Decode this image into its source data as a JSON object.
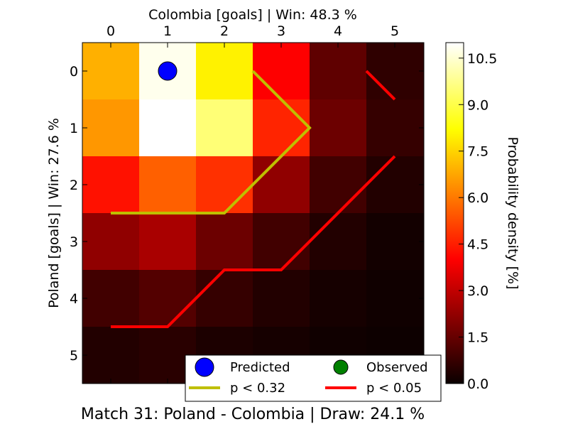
{
  "chart_data": {
    "type": "heatmap",
    "title": "Match 31: Poland - Colombia | Draw: 24.1 %",
    "xlabel": "Colombia [goals] | Win: 48.3 %",
    "ylabel": "Poland [goals] | Win: 27.6 %",
    "x_ticks": [
      "0",
      "1",
      "2",
      "3",
      "4",
      "5"
    ],
    "y_ticks": [
      "0",
      "1",
      "2",
      "3",
      "4",
      "5"
    ],
    "colorbar": {
      "label": "Probability density [%]",
      "ticks": [
        "0.0",
        "1.5",
        "3.0",
        "4.5",
        "6.0",
        "7.5",
        "9.0",
        "10.5"
      ],
      "range": [
        0,
        11
      ],
      "colormap": "hot"
    },
    "grid": false,
    "matrix": [
      [
        6.9,
        10.8,
        8.0,
        4.0,
        1.4,
        0.6
      ],
      [
        6.5,
        11.0,
        9.5,
        4.6,
        1.6,
        0.7
      ],
      [
        4.3,
        5.6,
        4.8,
        2.2,
        0.9,
        0.4
      ],
      [
        2.2,
        2.6,
        1.6,
        0.9,
        0.4,
        0.15
      ],
      [
        0.9,
        1.2,
        0.7,
        0.4,
        0.2,
        0.1
      ],
      [
        0.4,
        0.5,
        0.3,
        0.2,
        0.1,
        0.05
      ]
    ],
    "predicted": {
      "x": 1,
      "y": 0,
      "color": "#0000ff"
    },
    "contours": [
      {
        "name": "p < 0.32",
        "color": "#bfbf00",
        "segments": [
          [
            [
              0,
              2.5
            ],
            [
              2,
              2.5
            ],
            [
              3.5,
              1
            ],
            [
              2.5,
              0
            ]
          ]
        ]
      },
      {
        "name": "p < 0.05",
        "color": "#ff0000",
        "segments": [
          [
            [
              0,
              4.5
            ],
            [
              1,
              4.5
            ],
            [
              2,
              3.5
            ],
            [
              3,
              3.5
            ],
            [
              5,
              1.5
            ]
          ],
          [
            [
              4.5,
              0
            ],
            [
              5,
              0.5
            ]
          ]
        ]
      }
    ],
    "legend": {
      "position": "bottom-right",
      "items": [
        {
          "label": "Predicted",
          "kind": "marker",
          "color": "#0000ff"
        },
        {
          "label": "Observed",
          "kind": "marker",
          "color": "#008000"
        },
        {
          "label": "p < 0.32",
          "kind": "line",
          "color": "#bfbf00"
        },
        {
          "label": "p < 0.05",
          "kind": "line",
          "color": "#ff0000"
        }
      ]
    }
  }
}
